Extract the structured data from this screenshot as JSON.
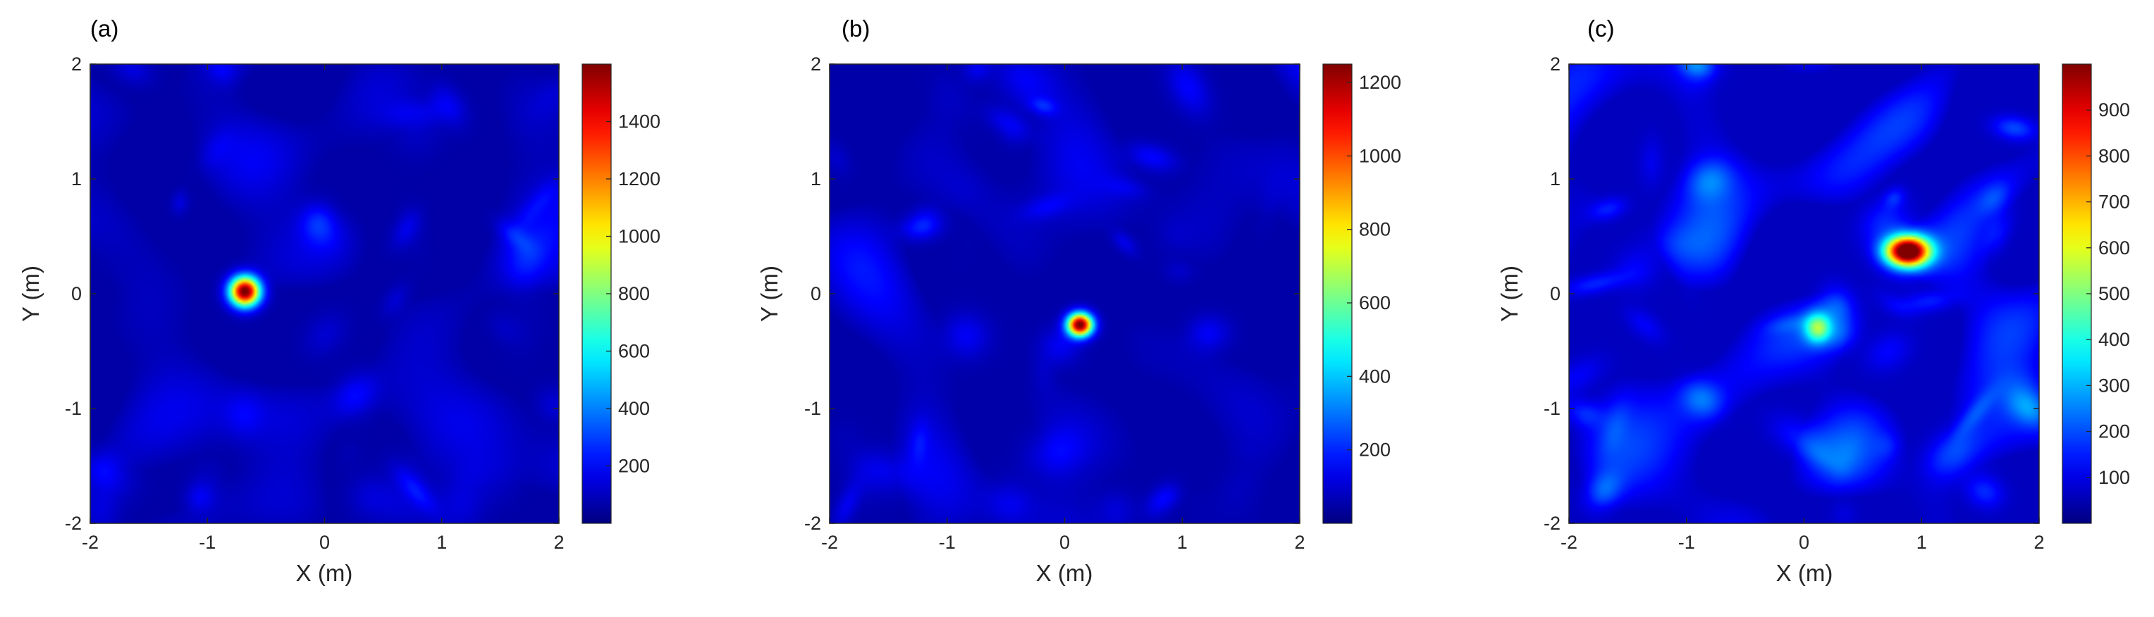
{
  "chart_data": [
    {
      "type": "heatmap",
      "panel_label": "(a)",
      "xlabel": "X (m)",
      "ylabel": "Y (m)",
      "xlim": [
        -2,
        2
      ],
      "ylim": [
        -2,
        2
      ],
      "xticks": [
        "-2",
        "-1",
        "0",
        "1",
        "2"
      ],
      "yticks": [
        "-2",
        "-1",
        "0",
        "1",
        "2"
      ],
      "colorbar": {
        "min": 0,
        "max": 1600,
        "ticks": [
          "200",
          "400",
          "600",
          "800",
          "1000",
          "1200",
          "1400"
        ]
      },
      "peaks": [
        {
          "x": -0.68,
          "y": 0.02,
          "value": 1600,
          "sx": 0.09,
          "sy": 0.09
        }
      ],
      "background": {
        "level": 60,
        "variation": 150
      },
      "seed": 11
    },
    {
      "type": "heatmap",
      "panel_label": "(b)",
      "xlabel": "X (m)",
      "ylabel": "Y (m)",
      "xlim": [
        -2,
        2
      ],
      "ylim": [
        -2,
        2
      ],
      "xticks": [
        "-2",
        "-1",
        "0",
        "1",
        "2"
      ],
      "yticks": [
        "-2",
        "-1",
        "0",
        "1",
        "2"
      ],
      "colorbar": {
        "min": 0,
        "max": 1250,
        "ticks": [
          "200",
          "400",
          "600",
          "800",
          "1000",
          "1200"
        ]
      },
      "peaks": [
        {
          "x": 0.13,
          "y": -0.27,
          "value": 1250,
          "sx": 0.075,
          "sy": 0.07
        }
      ],
      "background": {
        "level": 50,
        "variation": 130
      },
      "seed": 23
    },
    {
      "type": "heatmap",
      "panel_label": "(c)",
      "xlabel": "X (m)",
      "ylabel": "Y (m)",
      "xlim": [
        -2,
        2
      ],
      "ylim": [
        -2,
        2
      ],
      "xticks": [
        "-2",
        "-1",
        "0",
        "1",
        "2"
      ],
      "yticks": [
        "-2",
        "-1",
        "0",
        "1",
        "2"
      ],
      "colorbar": {
        "min": 0,
        "max": 1000,
        "ticks": [
          "100",
          "200",
          "300",
          "400",
          "500",
          "600",
          "700",
          "800",
          "900"
        ]
      },
      "peaks": [
        {
          "x": 0.88,
          "y": 0.37,
          "value": 1000,
          "sx": 0.13,
          "sy": 0.09
        },
        {
          "x": 0.12,
          "y": -0.3,
          "value": 380,
          "sx": 0.08,
          "sy": 0.09
        }
      ],
      "background": {
        "level": 60,
        "variation": 150
      },
      "seed": 37
    }
  ]
}
